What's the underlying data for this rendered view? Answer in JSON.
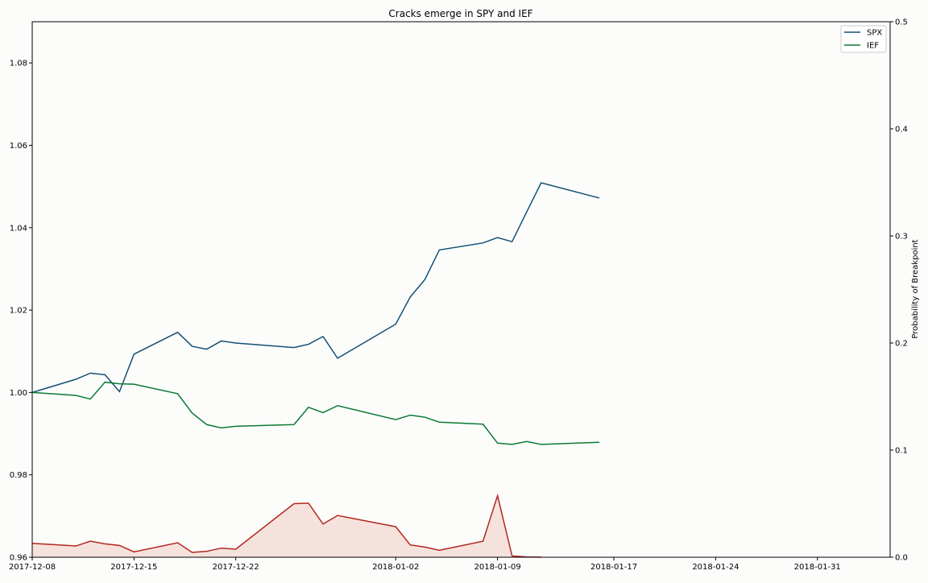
{
  "chart_data": {
    "type": "line",
    "title": "Cracks emerge in SPY and IEF",
    "xlabel": "",
    "ylabel": "",
    "y2label": "Probability of Breakpoint",
    "xlim": [
      "2017-12-08",
      "2018-02-05"
    ],
    "ylim": [
      0.96,
      1.09
    ],
    "y2lim": [
      0,
      0.5
    ],
    "x_ticks": [
      "2017-12-08",
      "2017-12-15",
      "2017-12-22",
      "2018-01-02",
      "2018-01-09",
      "2018-01-17",
      "2018-01-24",
      "2018-01-31"
    ],
    "y_ticks": [
      "0.96",
      "0.98",
      "1.00",
      "1.02",
      "1.04",
      "1.06",
      "1.08"
    ],
    "y2_ticks": [
      "0.0",
      "0.1",
      "0.2",
      "0.3",
      "0.4",
      "0.5"
    ],
    "grid": false,
    "legend_position": "top-right",
    "x": [
      "2017-12-08",
      "2017-12-11",
      "2017-12-12",
      "2017-12-13",
      "2017-12-14",
      "2017-12-15",
      "2017-12-18",
      "2017-12-19",
      "2017-12-20",
      "2017-12-21",
      "2017-12-22",
      "2017-12-26",
      "2017-12-27",
      "2017-12-28",
      "2017-12-29",
      "2018-01-02",
      "2018-01-03",
      "2018-01-04",
      "2018-01-05",
      "2018-01-08",
      "2018-01-09",
      "2018-01-10",
      "2018-01-11",
      "2018-01-12",
      "2018-01-16"
    ],
    "series": [
      {
        "name": "SPX",
        "color": "#144f74",
        "axis": "left",
        "values": [
          1.0,
          1.0032,
          1.0047,
          1.0043,
          1.0002,
          1.0093,
          1.0146,
          1.0112,
          1.0105,
          1.0125,
          1.012,
          1.0109,
          1.0117,
          1.0136,
          1.0083,
          1.0166,
          1.0232,
          1.0274,
          1.0346,
          1.0363,
          1.0376,
          1.0366,
          1.0438,
          1.0509,
          1.0472
        ]
      },
      {
        "name": "IEF",
        "color": "#0b7a35",
        "axis": "left",
        "values": [
          1.0,
          0.9993,
          0.9984,
          1.0025,
          1.0021,
          1.002,
          0.9997,
          0.995,
          0.9922,
          0.9914,
          0.9918,
          0.9922,
          0.9964,
          0.9951,
          0.9968,
          0.9934,
          0.9945,
          0.994,
          0.9928,
          0.9923,
          0.9877,
          0.9874,
          0.9881,
          0.9874,
          0.9879
        ]
      }
    ],
    "probability_series": {
      "axis": "right",
      "line_color": "#b3261e",
      "fill_color": "#f6e2dd",
      "x": [
        "2017-12-08",
        "2017-12-11",
        "2017-12-12",
        "2017-12-13",
        "2017-12-14",
        "2017-12-15",
        "2017-12-18",
        "2017-12-19",
        "2017-12-20",
        "2017-12-21",
        "2017-12-22",
        "2017-12-26",
        "2017-12-27",
        "2017-12-28",
        "2017-12-29",
        "2018-01-02",
        "2018-01-03",
        "2018-01-04",
        "2018-01-05",
        "2018-01-08",
        "2018-01-09",
        "2018-01-10",
        "2018-01-11",
        "2018-01-12"
      ],
      "values": [
        0.013,
        0.0105,
        0.015,
        0.0125,
        0.011,
        0.005,
        0.0135,
        0.0045,
        0.0055,
        0.0085,
        0.0075,
        0.05,
        0.0505,
        0.031,
        0.039,
        0.0285,
        0.0115,
        0.0095,
        0.0065,
        0.015,
        0.0575,
        0.0012,
        0.0003,
        0.0001
      ]
    }
  }
}
